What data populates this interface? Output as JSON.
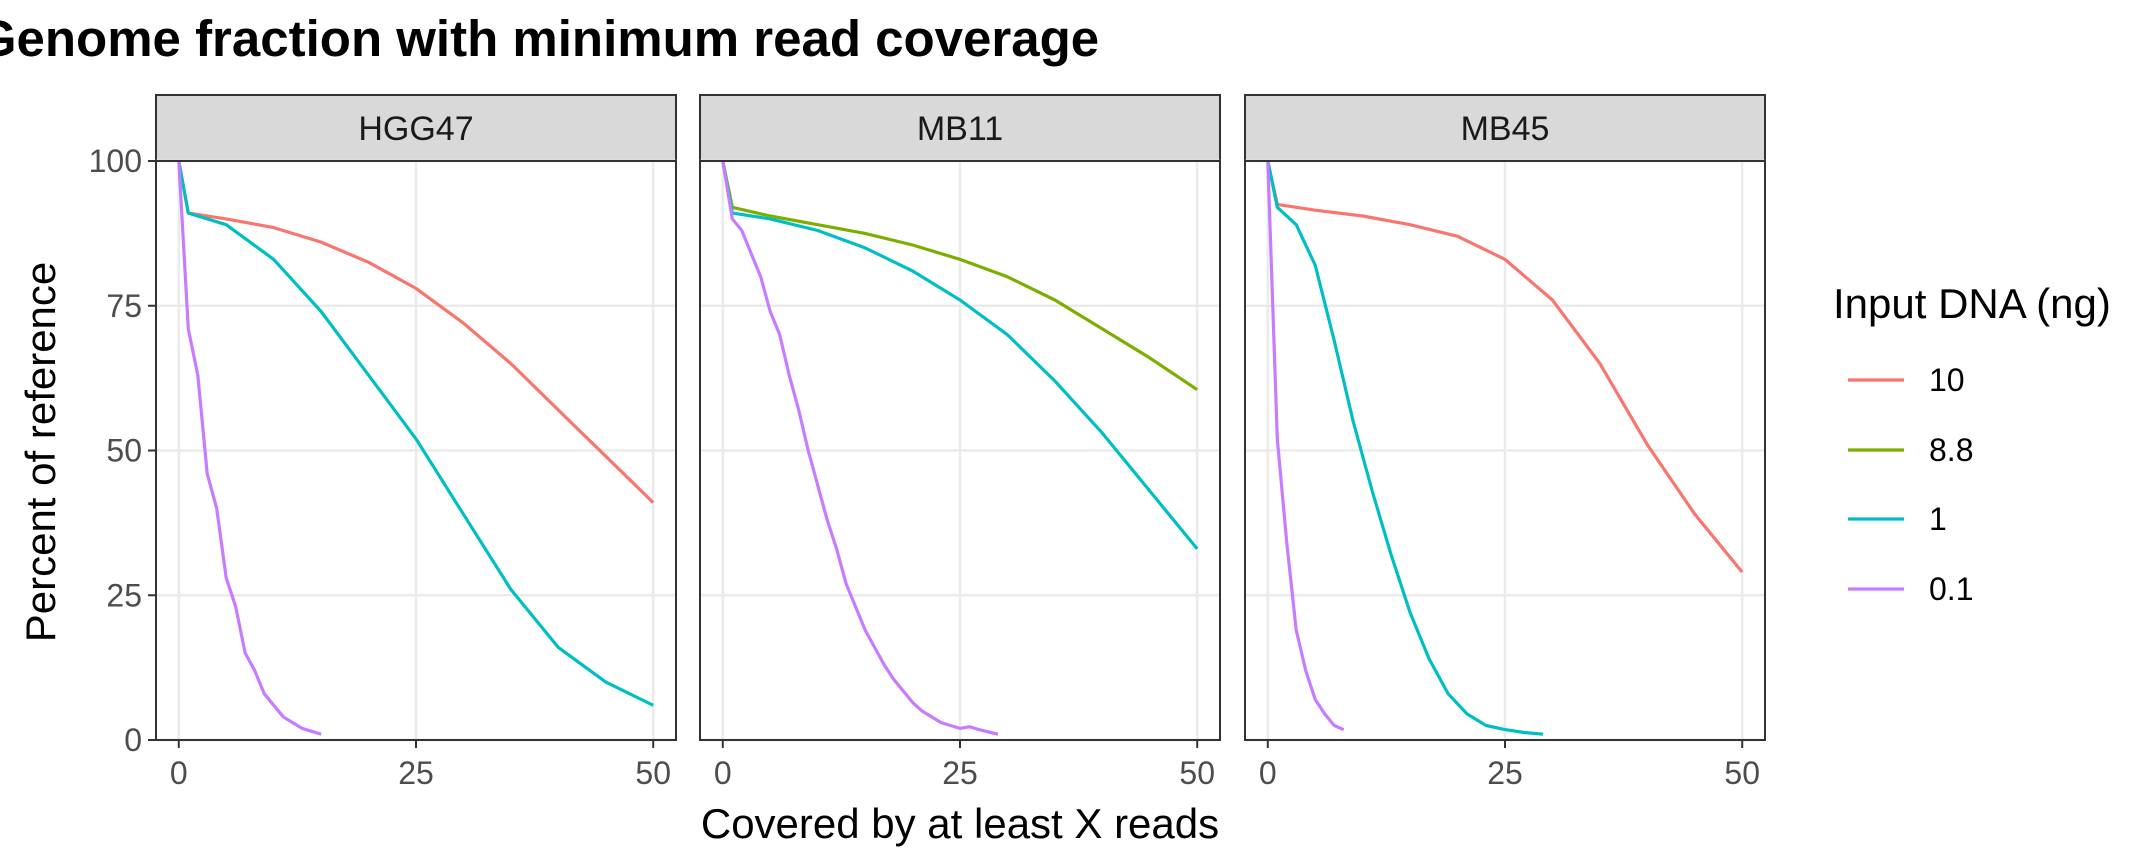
{
  "chart_data": {
    "type": "line",
    "title": "Genome fraction with minimum read coverage",
    "xlabel": "Covered by at least X reads",
    "ylabel": "Percent of reference",
    "xlim": [
      -2.4,
      52.4
    ],
    "ylim": [
      0,
      100
    ],
    "x_ticks": [
      0,
      25,
      50
    ],
    "y_ticks": [
      0,
      25,
      50,
      75,
      100
    ],
    "grid": true,
    "legend": {
      "title": "Input DNA (ng)",
      "placement": "right",
      "entries": [
        {
          "label": "10",
          "color": "#F8766D"
        },
        {
          "label": "8.8",
          "color": "#7CAE00"
        },
        {
          "label": "1",
          "color": "#00BFC4"
        },
        {
          "label": "0.1",
          "color": "#C77CFF"
        }
      ]
    },
    "facets": [
      {
        "name": "HGG47",
        "series": [
          {
            "name": "10",
            "x": [
              0,
              1,
              5,
              10,
              15,
              20,
              25,
              30,
              35,
              40,
              45,
              50
            ],
            "y": [
              100,
              91,
              90,
              88.5,
              86,
              82.5,
              78,
              72,
              65,
              57,
              49,
              41
            ]
          },
          {
            "name": "1",
            "x": [
              0,
              1,
              5,
              10,
              15,
              20,
              25,
              30,
              35,
              40,
              45,
              50
            ],
            "y": [
              100,
              91,
              89,
              83,
              74,
              63,
              52,
              39,
              26,
              16,
              10,
              6
            ]
          },
          {
            "name": "0.1",
            "x": [
              0,
              1,
              2,
              3,
              4,
              5,
              6,
              7,
              8,
              9,
              10,
              11,
              12,
              13,
              14,
              15
            ],
            "y": [
              100,
              71,
              63,
              46,
              40,
              28,
              23,
              15,
              12,
              8,
              6,
              4,
              3,
              2,
              1.5,
              1
            ]
          }
        ]
      },
      {
        "name": "MB11",
        "series": [
          {
            "name": "8.8",
            "x": [
              0,
              1,
              5,
              10,
              15,
              20,
              25,
              30,
              35,
              40,
              45,
              50
            ],
            "y": [
              100,
              92,
              90.5,
              89,
              87.5,
              85.5,
              83,
              80,
              76,
              71,
              66,
              60.5
            ]
          },
          {
            "name": "1",
            "x": [
              0,
              1,
              5,
              10,
              15,
              20,
              25,
              30,
              35,
              40,
              45,
              50
            ],
            "y": [
              100,
              91,
              90,
              88,
              85,
              81,
              76,
              70,
              62,
              53,
              43,
              33
            ]
          },
          {
            "name": "0.1",
            "x": [
              0,
              1,
              2,
              3,
              4,
              5,
              6,
              7,
              8,
              9,
              10,
              11,
              12,
              13,
              14,
              15,
              16,
              17,
              18,
              19,
              20,
              21,
              22,
              23,
              24,
              25,
              26,
              27,
              28,
              29
            ],
            "y": [
              100,
              90,
              88,
              84,
              80,
              74,
              70,
              63,
              57,
              50,
              44,
              38,
              33,
              27,
              23,
              19,
              16,
              13,
              10.5,
              8.5,
              6.5,
              5,
              4,
              3,
              2.5,
              2,
              2.3,
              1.8,
              1.4,
              1
            ]
          }
        ]
      },
      {
        "name": "MB45",
        "series": [
          {
            "name": "10",
            "x": [
              0,
              1,
              5,
              10,
              15,
              20,
              25,
              30,
              35,
              40,
              45,
              50
            ],
            "y": [
              100,
              92.5,
              91.5,
              90.5,
              89,
              87,
              83,
              76,
              65,
              51,
              39,
              29
            ]
          },
          {
            "name": "1",
            "x": [
              0,
              1,
              3,
              5,
              7,
              9,
              11,
              13,
              15,
              17,
              19,
              21,
              23,
              25,
              27,
              29
            ],
            "y": [
              100,
              92,
              89,
              82,
              69,
              55,
              43,
              32,
              22,
              14,
              8,
              4.5,
              2.5,
              1.8,
              1.3,
              1
            ]
          },
          {
            "name": "0.1",
            "x": [
              0,
              1,
              2,
              3,
              4,
              5,
              6,
              7,
              8
            ],
            "y": [
              100,
              52,
              34,
              19,
              12,
              7,
              4.5,
              2.5,
              1.8
            ]
          }
        ]
      }
    ]
  }
}
